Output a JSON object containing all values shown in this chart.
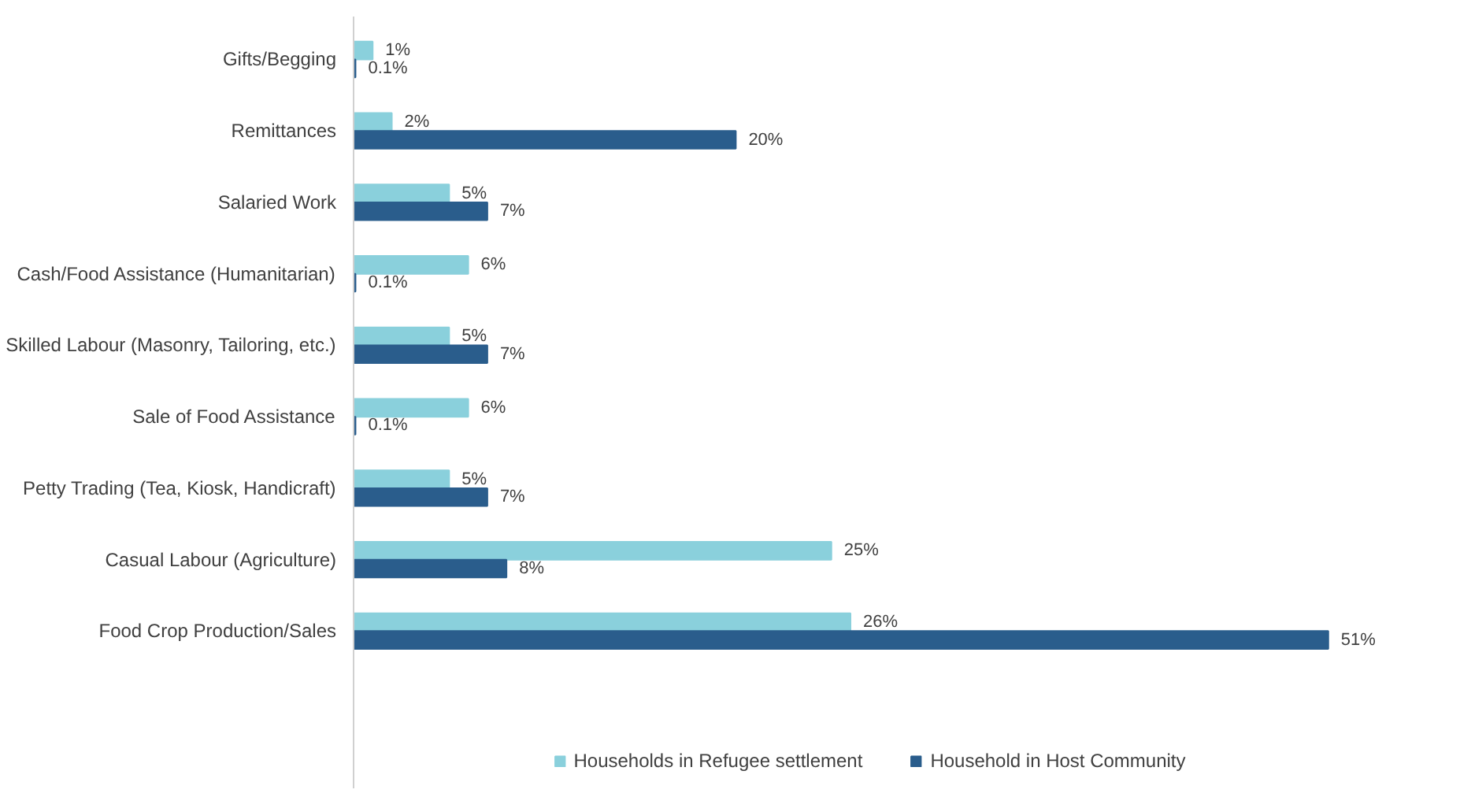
{
  "chart_data": {
    "type": "bar",
    "orientation": "horizontal",
    "categories": [
      "Gifts/Begging",
      "Remittances",
      "Salaried Work",
      "Cash/Food Assistance (Humanitarian)",
      "Skilled Labour (Masonry, Tailoring, etc.)",
      "Sale of Food Assistance",
      "Petty Trading (Tea, Kiosk, Handicraft)",
      "Casual Labour (Agriculture)",
      "Food Crop Production/Sales"
    ],
    "series": [
      {
        "name": "Households in Refugee settlement",
        "color": "#8ad0dc",
        "values": [
          1,
          2,
          5,
          6,
          5,
          6,
          5,
          25,
          26
        ],
        "value_labels": [
          "1%",
          "2%",
          "5%",
          "6%",
          "5%",
          "6%",
          "5%",
          "25%",
          "26%"
        ]
      },
      {
        "name": "Household in Host Community",
        "color": "#2a5d8c",
        "values": [
          0.1,
          20,
          7,
          0.1,
          7,
          0.1,
          7,
          8,
          51
        ],
        "value_labels": [
          "0.1%",
          "20%",
          "7%",
          "0.1%",
          "7%",
          "0.1%",
          "7%",
          "8%",
          "51%"
        ]
      }
    ],
    "data_labels": true,
    "legend": "bottom",
    "grid": false
  }
}
